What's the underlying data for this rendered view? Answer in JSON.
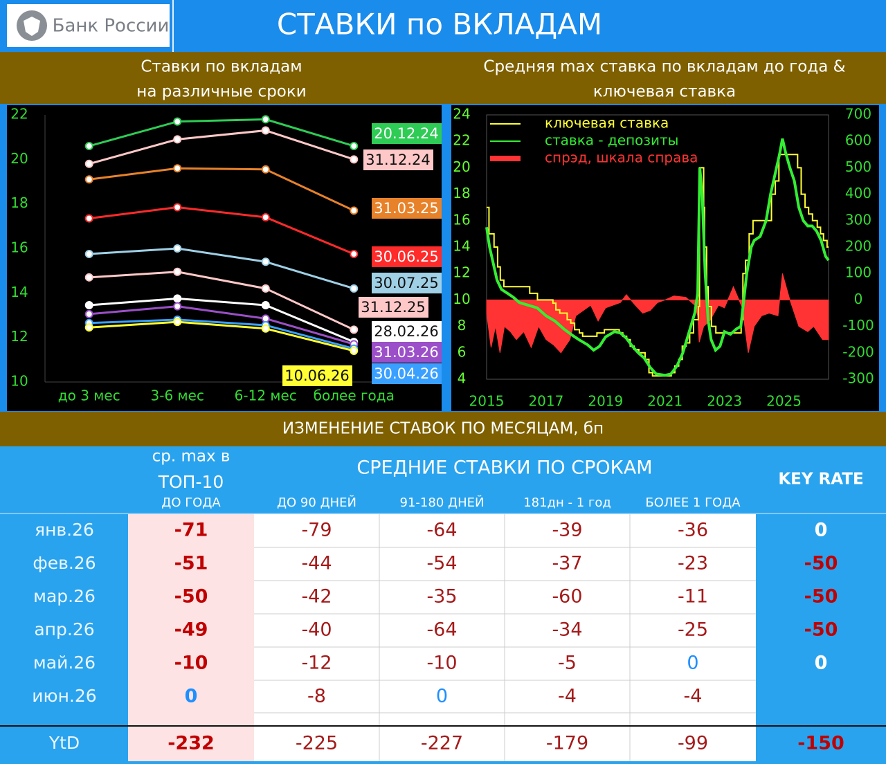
{
  "header": {
    "logo": "Банк России",
    "title": "СТАВКИ по ВКЛАДАМ"
  },
  "chart_data": [
    {
      "type": "line",
      "title": [
        "Ставки по вкладам",
        "на различные сроки"
      ],
      "categories": [
        "до 3 мес",
        "3-6 мес",
        "6-12 мес",
        "более года"
      ],
      "ylim": [
        10,
        22
      ],
      "yticks": [
        10,
        12,
        14,
        16,
        18,
        20,
        22
      ],
      "series": [
        {
          "name": "20.12.24",
          "color": "#2ecc55",
          "values": [
            20.6,
            21.7,
            21.8,
            20.6
          ]
        },
        {
          "name": "31.12.24",
          "color": "#ffc8c8",
          "values": [
            19.8,
            20.9,
            21.3,
            20.0
          ]
        },
        {
          "name": "31.03.25",
          "color": "#e8822a",
          "values": [
            19.1,
            19.6,
            19.55,
            17.7
          ]
        },
        {
          "name": "30.06.25",
          "color": "#ff2a2a",
          "values": [
            17.35,
            17.85,
            17.4,
            15.75
          ]
        },
        {
          "name": "30.07.25",
          "color": "#9fd0e6",
          "values": [
            15.75,
            16.0,
            15.4,
            14.2
          ]
        },
        {
          "name": "31.12.25",
          "color": "#ffc8c8",
          "values": [
            14.7,
            14.95,
            14.2,
            12.35
          ]
        },
        {
          "name": "28.02.26",
          "color": "#ffffff",
          "values": [
            13.45,
            13.75,
            13.45,
            11.8
          ]
        },
        {
          "name": "31.03.26",
          "color": "#9b4fc8",
          "values": [
            13.05,
            13.4,
            12.85,
            11.7
          ]
        },
        {
          "name": "30.04.26",
          "color": "#3aa0ff",
          "values": [
            12.65,
            12.8,
            12.55,
            11.5
          ]
        },
        {
          "name": "10.06.26",
          "color": "#ffff33",
          "values": [
            12.45,
            12.7,
            12.4,
            11.4
          ]
        }
      ]
    },
    {
      "type": "timeseries",
      "title": [
        "Средняя max ставка по вкладам до года &",
        "ключевая ставка"
      ],
      "xlim": [
        2015,
        2026.5
      ],
      "xticks": [
        2015,
        2017,
        2019,
        2021,
        2023,
        2025
      ],
      "ylim": [
        4,
        24
      ],
      "yticks": [
        4,
        6,
        8,
        10,
        12,
        14,
        16,
        18,
        20,
        22,
        24
      ],
      "y2lim": [
        -300,
        700
      ],
      "y2ticks": [
        -300,
        -200,
        -100,
        0,
        100,
        200,
        300,
        400,
        500,
        600,
        700
      ],
      "series": [
        {
          "name": "ключевая ставка",
          "color": "#ffff33",
          "kind": "line",
          "x": [
            2015.0,
            2015.08,
            2015.08,
            2015.25,
            2015.25,
            2015.37,
            2015.37,
            2015.46,
            2015.46,
            2015.58,
            2015.58,
            2016.45,
            2016.45,
            2016.71,
            2016.71,
            2017.23,
            2017.23,
            2017.33,
            2017.33,
            2017.46,
            2017.46,
            2017.71,
            2017.71,
            2017.83,
            2017.83,
            2017.96,
            2017.96,
            2018.12,
            2018.12,
            2018.23,
            2018.23,
            2018.71,
            2018.71,
            2018.96,
            2018.96,
            2019.46,
            2019.46,
            2019.58,
            2019.58,
            2019.71,
            2019.71,
            2019.83,
            2019.83,
            2019.96,
            2019.96,
            2020.12,
            2020.12,
            2020.33,
            2020.33,
            2020.46,
            2020.46,
            2020.58,
            2020.58,
            2021.21,
            2021.21,
            2021.33,
            2021.33,
            2021.46,
            2021.46,
            2021.58,
            2021.58,
            2021.71,
            2021.71,
            2021.83,
            2021.83,
            2021.96,
            2021.96,
            2022.12,
            2022.12,
            2022.16,
            2022.16,
            2022.3,
            2022.3,
            2022.33,
            2022.33,
            2022.4,
            2022.4,
            2022.45,
            2022.45,
            2022.56,
            2022.56,
            2022.71,
            2022.71,
            2023.56,
            2023.56,
            2023.62,
            2023.62,
            2023.71,
            2023.71,
            2023.83,
            2023.83,
            2023.96,
            2023.96,
            2024.58,
            2024.58,
            2024.71,
            2024.71,
            2024.83,
            2024.83,
            2025.46,
            2025.46,
            2025.58,
            2025.58,
            2025.71,
            2025.71,
            2025.83,
            2025.83,
            2025.96,
            2025.96,
            2026.12,
            2026.12,
            2026.23,
            2026.23,
            2026.33,
            2026.33,
            2026.45,
            2026.45,
            2026.5
          ],
          "values": [
            17,
            17,
            15,
            15,
            14,
            14,
            12.5,
            12.5,
            11.5,
            11.5,
            11,
            11,
            10.5,
            10.5,
            10,
            10,
            9.75,
            9.75,
            9.25,
            9.25,
            9,
            9,
            8.5,
            8.5,
            8.25,
            8.25,
            7.75,
            7.75,
            7.5,
            7.5,
            7.25,
            7.25,
            7.5,
            7.5,
            7.75,
            7.75,
            7.5,
            7.5,
            7.25,
            7.25,
            7,
            7,
            6.5,
            6.5,
            6.25,
            6.25,
            6,
            6,
            5.5,
            5.5,
            4.5,
            4.5,
            4.25,
            4.25,
            4.5,
            4.5,
            5,
            5,
            5.5,
            5.5,
            6.5,
            6.5,
            6.75,
            6.75,
            7.5,
            7.5,
            8.5,
            8.5,
            9.5,
            9.5,
            20,
            20,
            17,
            17,
            14,
            14,
            11,
            11,
            9.5,
            9.5,
            8,
            8,
            7.5,
            7.5,
            8.5,
            8.5,
            12,
            12,
            13,
            13,
            15,
            15,
            16,
            16,
            18,
            18,
            19,
            19,
            21,
            21,
            20,
            20,
            18,
            18,
            17,
            17,
            16.5,
            16.5,
            16,
            16,
            15.5,
            15.5,
            15,
            15,
            14.5,
            14.5,
            14,
            14
          ]
        },
        {
          "name": "ставка - депозиты",
          "color": "#33ee33",
          "kind": "line",
          "x": [
            2015.0,
            2015.1,
            2015.2,
            2015.35,
            2015.5,
            2015.7,
            2015.9,
            2016.1,
            2016.4,
            2016.7,
            2017.0,
            2017.3,
            2017.6,
            2017.9,
            2018.1,
            2018.4,
            2018.6,
            2018.8,
            2019.0,
            2019.3,
            2019.5,
            2019.7,
            2019.9,
            2020.1,
            2020.3,
            2020.5,
            2020.7,
            2021.0,
            2021.2,
            2021.4,
            2021.6,
            2021.8,
            2022.0,
            2022.1,
            2022.17,
            2022.25,
            2022.35,
            2022.45,
            2022.55,
            2022.7,
            2022.85,
            2023.0,
            2023.2,
            2023.4,
            2023.55,
            2023.65,
            2023.75,
            2023.9,
            2024.0,
            2024.2,
            2024.4,
            2024.55,
            2024.7,
            2024.85,
            2024.95,
            2025.05,
            2025.2,
            2025.35,
            2025.5,
            2025.65,
            2025.8,
            2025.95,
            2026.1,
            2026.25,
            2026.4,
            2026.5
          ],
          "values": [
            15.5,
            14,
            13,
            11.5,
            10.8,
            10.5,
            10.2,
            9.8,
            9.6,
            9.4,
            8.8,
            8.4,
            7.8,
            7.3,
            7.0,
            6.6,
            6.2,
            6.5,
            7.2,
            7.6,
            7.5,
            7.1,
            6.5,
            6.0,
            5.6,
            4.9,
            4.4,
            4.3,
            4.4,
            5.0,
            6.0,
            7.5,
            9.0,
            10.5,
            20.0,
            18,
            12,
            8.5,
            7,
            6.2,
            6.5,
            7.6,
            7.4,
            7.8,
            8.0,
            10,
            12,
            14,
            14.5,
            14.8,
            16,
            18,
            19.5,
            21,
            22.2,
            21.2,
            20,
            19,
            17,
            16,
            15.6,
            15.6,
            15.2,
            14.5,
            13.3,
            13.0
          ]
        },
        {
          "name": "спрэд, шкала справа",
          "color": "#ff3333",
          "kind": "area",
          "axis": "y2",
          "x": [
            2015.0,
            2015.15,
            2015.3,
            2015.45,
            2015.6,
            2015.8,
            2016.0,
            2016.25,
            2016.5,
            2016.75,
            2017.0,
            2017.25,
            2017.5,
            2017.8,
            2018.0,
            2018.25,
            2018.5,
            2018.75,
            2019.0,
            2019.25,
            2019.5,
            2019.7,
            2020.0,
            2020.25,
            2020.5,
            2020.75,
            2021.0,
            2021.3,
            2021.7,
            2022.0,
            2022.1,
            2022.15,
            2022.3,
            2022.5,
            2022.8,
            2023.0,
            2023.3,
            2023.6,
            2023.8,
            2024.0,
            2024.25,
            2024.5,
            2024.8,
            2024.95,
            2025.2,
            2025.5,
            2025.8,
            2026.0,
            2026.3,
            2026.5
          ],
          "values": [
            -50,
            -180,
            -100,
            -200,
            -100,
            -120,
            -150,
            -120,
            -180,
            -100,
            -150,
            -170,
            -200,
            -150,
            -60,
            -40,
            -20,
            -80,
            -30,
            -20,
            -10,
            20,
            -20,
            -50,
            -40,
            -10,
            0,
            15,
            10,
            -20,
            -60,
            -160,
            -100,
            -80,
            -20,
            -30,
            50,
            -30,
            -200,
            -100,
            -60,
            -50,
            -60,
            100,
            0,
            -100,
            -120,
            -100,
            -150,
            -150
          ]
        }
      ]
    }
  ],
  "section_title": "ИЗМЕНЕНИЕ СТАВОК ПО МЕСЯЦАМ, бп",
  "table": {
    "top10_title": [
      "ср. max в",
      "ТОП-10"
    ],
    "group_title": "СРЕДНИЕ СТАВКИ ПО СРОКАМ",
    "columns": [
      "ДО ГОДА",
      "ДО 90 ДНЕЙ",
      "91-180 ДНЕЙ",
      "181дн - 1 год",
      "БОЛЕЕ 1 ГОДА",
      "KEY RATE"
    ],
    "rows": [
      {
        "label": "янв.26",
        "values": [
          -71,
          -79,
          -64,
          -39,
          -36,
          0
        ]
      },
      {
        "label": "фев.26",
        "values": [
          -51,
          -44,
          -54,
          -37,
          -23,
          -50
        ]
      },
      {
        "label": "мар.26",
        "values": [
          -50,
          -42,
          -35,
          -60,
          -11,
          -50
        ]
      },
      {
        "label": "апр.26",
        "values": [
          -49,
          -40,
          -64,
          -34,
          -25,
          -50
        ]
      },
      {
        "label": "май.26",
        "values": [
          -10,
          -12,
          -10,
          -5,
          0,
          0
        ]
      },
      {
        "label": "июн.26",
        "values": [
          0,
          -8,
          0,
          -4,
          -4
        ]
      }
    ],
    "total": {
      "label": "YtD",
      "values": [
        -232,
        -225,
        -227,
        -179,
        -99,
        -150
      ]
    }
  }
}
